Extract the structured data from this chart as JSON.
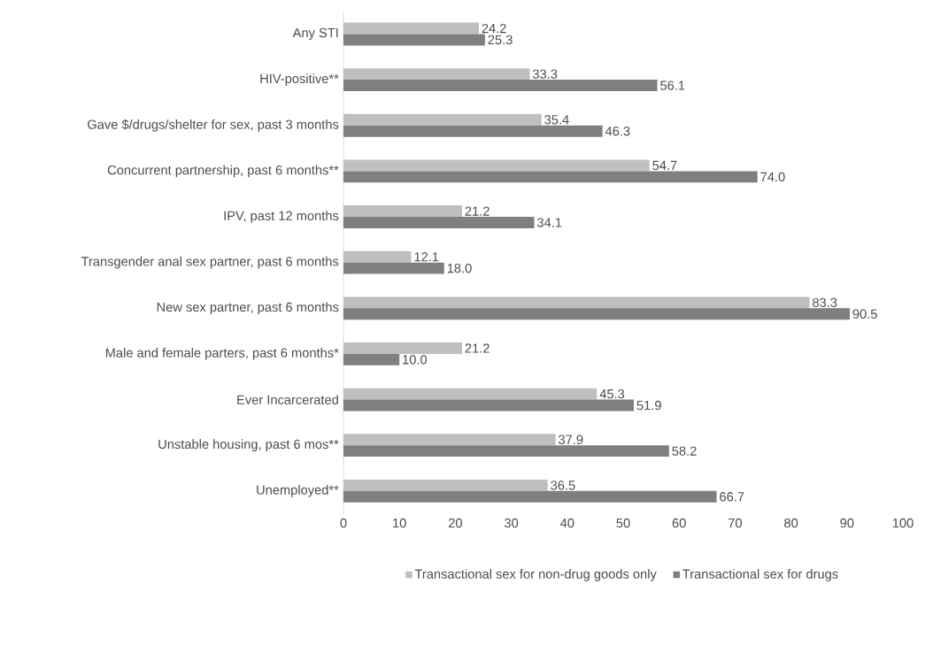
{
  "chart_data": {
    "type": "bar",
    "orientation": "horizontal",
    "categories": [
      "Any STI",
      "HIV-positive**",
      "Gave $/drugs/shelter for sex, past 3 months",
      "Concurrent partnership, past 6 months**",
      "IPV, past 12 months",
      "Transgender anal sex partner, past 6 months",
      "New sex partner, past 6 months",
      "Male and female parters, past 6 months*",
      "Ever Incarcerated",
      "Unstable housing, past 6 mos**",
      "Unemployed**"
    ],
    "series": [
      {
        "name": "Transactional sex for non-drug goods only",
        "color": "#bfbfbf",
        "values": [
          24.2,
          33.3,
          35.4,
          54.7,
          21.2,
          12.1,
          83.3,
          21.2,
          45.3,
          37.9,
          36.5
        ],
        "value_labels": [
          "24.2",
          "33.3",
          "35.4",
          "54.7",
          "21.2",
          "12.1",
          "83.3",
          "21.2",
          "45.3",
          "37.9",
          "36.5"
        ]
      },
      {
        "name": "Transactional sex for drugs",
        "color": "#7f7f7f",
        "values": [
          25.3,
          56.1,
          46.3,
          74.0,
          34.1,
          18.0,
          90.5,
          10.0,
          51.9,
          58.2,
          66.7
        ],
        "value_labels": [
          "25.3",
          "56.1",
          "46.3",
          "74.0",
          "34.1",
          "18.0",
          "90.5",
          "10.0",
          "51.9",
          "58.2",
          "66.7"
        ]
      }
    ],
    "xlim": [
      0,
      100
    ],
    "xticks": [
      0,
      10,
      20,
      30,
      40,
      50,
      60,
      70,
      80,
      90,
      100
    ],
    "legend": "bottom"
  }
}
